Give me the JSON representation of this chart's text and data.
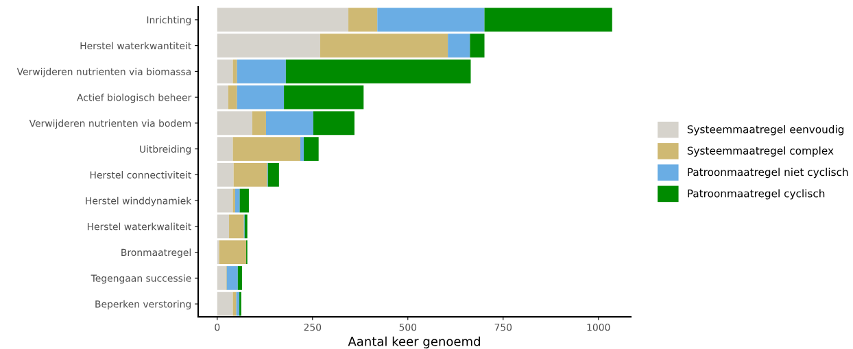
{
  "chart_data": {
    "type": "bar",
    "orientation": "horizontal",
    "stacked": true,
    "xlabel": "Aantal keer genoemd",
    "categories": [
      "Inrichting",
      "Herstel waterkwantiteit",
      "Verwijderen nutrienten via biomassa",
      "Actief biologisch beheer",
      "Verwijderen nutrienten via bodem",
      "Uitbreiding",
      "Herstel connectiviteit",
      "Herstel winddynamiek",
      "Herstel waterkwaliteit",
      "Bronmaatregel",
      "Tegengaan successie",
      "Beperken verstoring"
    ],
    "series": [
      {
        "name": "Systeemmaatregel eenvoudig",
        "color": "#d6d3cc",
        "values": [
          344,
          270,
          41,
          29,
          92,
          41,
          43,
          41,
          31,
          5,
          23,
          41
        ]
      },
      {
        "name": "Systeemmaatregel complex",
        "color": "#cfb973",
        "values": [
          76,
          335,
          11,
          23,
          36,
          177,
          88,
          6,
          39,
          71,
          2,
          9
        ]
      },
      {
        "name": "Patroonmaatregel niet cyclisch",
        "color": "#6aade4",
        "values": [
          281,
          58,
          128,
          123,
          124,
          9,
          2,
          12,
          2,
          0,
          29,
          8
        ]
      },
      {
        "name": "Patroonmaatregel cyclisch",
        "color": "#008b00",
        "values": [
          335,
          38,
          485,
          209,
          108,
          39,
          29,
          24,
          7,
          3,
          11,
          5
        ]
      }
    ],
    "xlim": [
      -50,
      1085
    ],
    "xticks": [
      0,
      250,
      500,
      750,
      1000
    ],
    "legend": "right",
    "grid": false
  }
}
